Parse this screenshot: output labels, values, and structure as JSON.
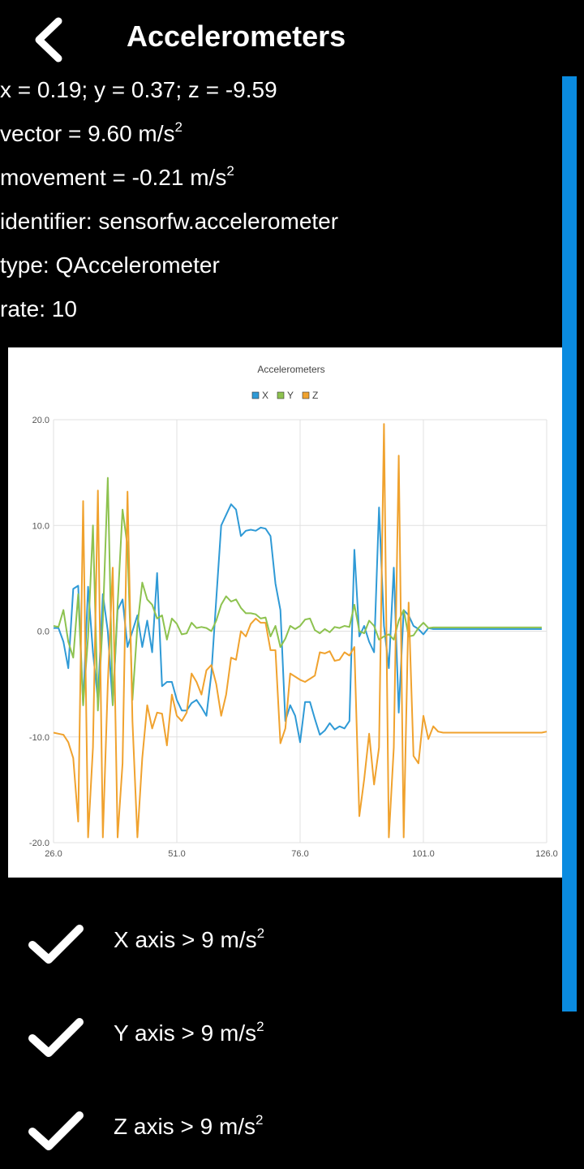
{
  "header": {
    "title": "Accelerometers",
    "back_icon": "chevron-left-icon"
  },
  "info": {
    "xyz": "x = 0.19; y = 0.37; z = -9.59",
    "vector_prefix": "vector = 9.60 m/s",
    "movement_prefix": "movement = -0.21 m/s",
    "unit_exponent": "2",
    "identifier": "identifier: sensorfw.accelerometer",
    "type": "type: QAccelerometer",
    "rate": "rate: 10"
  },
  "chart_data": {
    "type": "line",
    "title": "Accelerometers",
    "legend_position": "top",
    "xlim": [
      26.0,
      126.0
    ],
    "ylim": [
      -20.0,
      20.0
    ],
    "x_ticks": [
      "26.0",
      "51.0",
      "76.0",
      "101.0",
      "126.0"
    ],
    "y_ticks": [
      "20.0",
      "10.0",
      "0.0",
      "-10.0",
      "-20.0"
    ],
    "grid": true,
    "x_start": 26,
    "x_step": 1,
    "series": [
      {
        "name": "X",
        "color": "#2f9ad6",
        "values": [
          0.3,
          0.3,
          -1,
          -3.5,
          4,
          4.3,
          -7,
          4.2,
          -2,
          -6.5,
          3.5,
          0,
          -7,
          2,
          3,
          -1.5,
          0,
          1.5,
          -1.5,
          1,
          -2,
          5.5,
          -5.2,
          -4.8,
          -4.8,
          -6.5,
          -7.5,
          -7.5,
          -6.8,
          -6.5,
          -7.2,
          -8,
          -4,
          3,
          10,
          11,
          12,
          11.5,
          9,
          9.5,
          9.6,
          9.5,
          9.8,
          9.7,
          9,
          4.5,
          2,
          -8.5,
          -7,
          -8,
          -10.5,
          -6.7,
          -6.7,
          -8.3,
          -9.8,
          -9.4,
          -8.7,
          -9.3,
          -9,
          -9.2,
          -8.5,
          7.7,
          -0.5,
          0.5,
          -1,
          -2,
          11.7,
          0.5,
          -3.5,
          6,
          -7.7,
          2,
          1.5,
          0.5,
          0.2,
          -0.3,
          0.3,
          0.2,
          0.2,
          0.2,
          0.2,
          0.2,
          0.2,
          0.2,
          0.2,
          0.2,
          0.2,
          0.2,
          0.2,
          0.2,
          0.2,
          0.2,
          0.2,
          0.2,
          0.2,
          0.2,
          0.2,
          0.2,
          0.2,
          0.2
        ]
      },
      {
        "name": "Y",
        "color": "#8dc24f",
        "values": [
          0.5,
          0.4,
          2,
          -1,
          -2.5,
          3.5,
          -7,
          -0.5,
          10,
          -7.5,
          1,
          14.5,
          -7,
          2.5,
          11.5,
          8,
          -6.5,
          0.5,
          4.6,
          3,
          2.5,
          1.2,
          1.5,
          -0.8,
          1.2,
          0.7,
          -0.3,
          -0.2,
          0.8,
          0.3,
          0.4,
          0.3,
          0,
          1,
          2.5,
          3.3,
          2.8,
          3,
          2.2,
          1.7,
          1.7,
          1.6,
          1.2,
          1.3,
          -0.5,
          0.5,
          -1.5,
          -0.7,
          0.5,
          0.2,
          0.5,
          1.1,
          1.2,
          0.1,
          -0.2,
          0.2,
          -0.1,
          0.4,
          0.3,
          0.5,
          0.4,
          2.5,
          0,
          -0.2,
          1,
          0.5,
          -0.8,
          -0.5,
          -0.3,
          -0.8,
          1,
          2,
          -0.5,
          -0.4,
          0.3,
          0.8,
          0.3,
          0.35,
          0.35,
          0.35,
          0.35,
          0.35,
          0.35,
          0.35,
          0.35,
          0.35,
          0.35,
          0.35,
          0.35,
          0.35,
          0.35,
          0.35,
          0.35,
          0.35,
          0.35,
          0.35,
          0.35,
          0.35,
          0.35,
          0.35
        ]
      },
      {
        "name": "Z",
        "color": "#f0a22e",
        "values": [
          -9.6,
          -9.7,
          -9.8,
          -10.5,
          -12,
          -18,
          12.3,
          -19.5,
          -11,
          13.3,
          -19.5,
          -5,
          6,
          -19.5,
          -12.5,
          13.2,
          -8.5,
          -19.5,
          -12,
          -7,
          -9.2,
          -7.7,
          -7.8,
          -10.8,
          -6,
          -8,
          -8.5,
          -7.7,
          -4,
          -4.8,
          -6,
          -3.7,
          -3.2,
          -5,
          -8,
          -6,
          -2.5,
          -2.7,
          0,
          -0.5,
          0.7,
          1.2,
          0.8,
          0.8,
          -1.8,
          -1.8,
          -10.6,
          -9.2,
          -4,
          -4.3,
          -4.6,
          -4.8,
          -4.5,
          -4.2,
          -2,
          -2.1,
          -1.9,
          -2.8,
          -2.7,
          -2,
          -2.3,
          -1.5,
          -17.5,
          -14,
          -9.7,
          -14.5,
          -11,
          19.6,
          -19.5,
          -11,
          16.6,
          -19.5,
          2.7,
          -11.8,
          -12.5,
          -8,
          -10.2,
          -9,
          -9.5,
          -9.6,
          -9.6,
          -9.6,
          -9.6,
          -9.6,
          -9.6,
          -9.6,
          -9.6,
          -9.6,
          -9.6,
          -9.6,
          -9.6,
          -9.6,
          -9.6,
          -9.6,
          -9.6,
          -9.6,
          -9.6,
          -9.6,
          -9.6,
          -9.6,
          -9.5
        ]
      }
    ]
  },
  "checks": [
    {
      "icon": "checkmark-icon",
      "label_prefix": "X axis > 9 m/s",
      "exponent": "2"
    },
    {
      "icon": "checkmark-icon",
      "label_prefix": "Y axis > 9 m/s",
      "exponent": "2"
    },
    {
      "icon": "checkmark-icon",
      "label_prefix": "Z axis > 9 m/s",
      "exponent": "2"
    }
  ]
}
